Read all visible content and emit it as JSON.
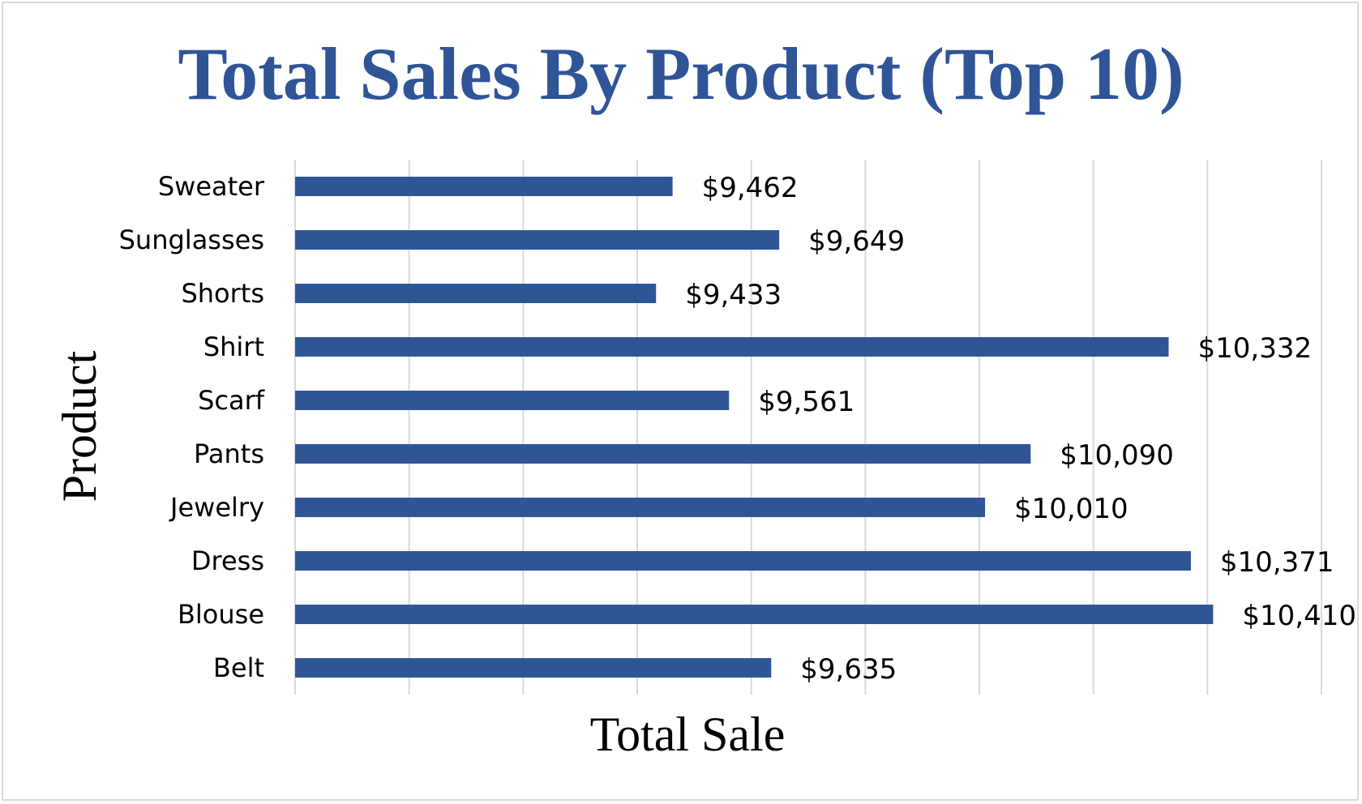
{
  "chart_data": {
    "type": "bar",
    "orientation": "horizontal",
    "title": "Total Sales By Product (Top 10)",
    "xlabel": "Total Sale",
    "ylabel": "Product",
    "categories": [
      "Sweater",
      "Sunglasses",
      "Shorts",
      "Shirt",
      "Scarf",
      "Pants",
      "Jewelry",
      "Dress",
      "Blouse",
      "Belt"
    ],
    "values": [
      9462,
      9649,
      9433,
      10332,
      9561,
      10090,
      10010,
      10371,
      10410,
      9635
    ],
    "value_labels": [
      "$9,462",
      "$9,649",
      "$9,433",
      "$10,332",
      "$9,561",
      "$10,090",
      "$10,010",
      "$10,371",
      "$10,410",
      "$9,635"
    ],
    "xlim": [
      8800,
      10600
    ],
    "x_gridline_step": 200,
    "x_tick_labels_shown": false,
    "grid": true,
    "legend": "none",
    "colors": {
      "bar": "#2f5597",
      "title": "#2f5597",
      "grid": "#d9d9d9"
    }
  }
}
